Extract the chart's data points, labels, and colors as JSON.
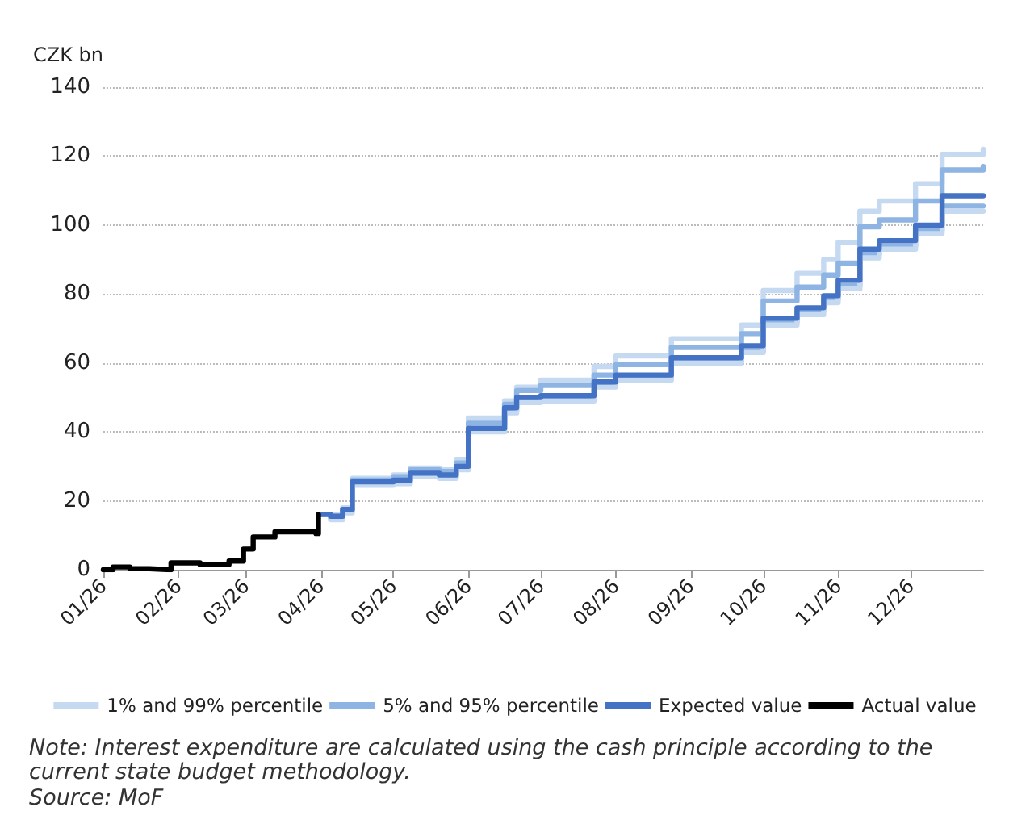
{
  "chart_data": {
    "type": "step",
    "ylabel": "CZK bn",
    "xlim": [
      "2026-01-01",
      "2026-12-31"
    ],
    "xticks": [
      {
        "value": "2026-01-01",
        "label": "01/26"
      },
      {
        "value": "2026-02-01",
        "label": "02/26"
      },
      {
        "value": "2026-03-01",
        "label": "03/26"
      },
      {
        "value": "2026-04-01",
        "label": "04/26"
      },
      {
        "value": "2026-05-01",
        "label": "05/26"
      },
      {
        "value": "2026-06-01",
        "label": "06/26"
      },
      {
        "value": "2026-07-01",
        "label": "07/26"
      },
      {
        "value": "2026-08-01",
        "label": "08/26"
      },
      {
        "value": "2026-09-01",
        "label": "09/26"
      },
      {
        "value": "2026-10-01",
        "label": "10/26"
      },
      {
        "value": "2026-11-01",
        "label": "11/26"
      },
      {
        "value": "2026-12-01",
        "label": "12/26"
      }
    ],
    "ylim": [
      0,
      140
    ],
    "yticks": [
      0,
      20,
      40,
      60,
      80,
      100,
      120,
      140
    ],
    "grid": "y",
    "legend": "bottom",
    "marker": "none",
    "line_style": "solid",
    "series": [
      {
        "name": "1% and 99% percentile",
        "color": "#c5d9f1",
        "x": [
          "2026-04-01",
          "2026-04-05",
          "2026-04-10",
          "2026-04-14",
          "2026-05-01",
          "2026-05-08",
          "2026-05-20",
          "2026-05-27",
          "2026-06-01",
          "2026-06-16",
          "2026-06-21",
          "2026-07-01",
          "2026-07-23",
          "2026-08-01",
          "2026-08-24",
          "2026-09-22",
          "2026-10-01",
          "2026-10-15",
          "2026-10-26",
          "2026-11-01",
          "2026-11-10",
          "2026-11-18",
          "2026-12-03",
          "2026-12-14",
          "2026-12-31"
        ],
        "values": [
          16,
          16,
          18,
          26.5,
          27.5,
          29.5,
          29,
          32,
          44,
          49,
          53,
          55,
          59,
          62,
          67,
          71,
          81,
          86,
          90,
          95,
          104,
          107,
          112,
          120.5,
          122
        ]
      },
      {
        "name": "5% and 95% percentile",
        "color": "#8db4e2",
        "x": [
          "2026-04-01",
          "2026-04-05",
          "2026-04-10",
          "2026-04-14",
          "2026-05-01",
          "2026-05-08",
          "2026-05-20",
          "2026-05-27",
          "2026-06-01",
          "2026-06-16",
          "2026-06-21",
          "2026-07-01",
          "2026-07-23",
          "2026-08-01",
          "2026-08-24",
          "2026-09-22",
          "2026-10-01",
          "2026-10-15",
          "2026-10-26",
          "2026-11-01",
          "2026-11-10",
          "2026-11-18",
          "2026-12-03",
          "2026-12-14",
          "2026-12-31"
        ],
        "values": [
          16,
          15.5,
          17.5,
          26,
          27,
          29,
          28.5,
          31,
          42.5,
          48,
          52,
          53.5,
          56.5,
          59.5,
          64.5,
          68.5,
          78,
          82,
          85.5,
          89,
          99.5,
          101.5,
          107,
          116,
          117
        ]
      },
      {
        "color": "#8db4e2",
        "x": [
          "2026-04-01",
          "2026-04-05",
          "2026-04-10",
          "2026-04-14",
          "2026-05-01",
          "2026-05-08",
          "2026-05-20",
          "2026-05-27",
          "2026-06-01",
          "2026-06-16",
          "2026-06-21",
          "2026-07-01",
          "2026-07-23",
          "2026-08-01",
          "2026-08-24",
          "2026-09-22",
          "2026-10-01",
          "2026-10-15",
          "2026-10-26",
          "2026-11-01",
          "2026-11-10",
          "2026-11-18",
          "2026-12-03",
          "2026-12-14",
          "2026-12-31"
        ],
        "values": [
          16,
          15,
          17,
          25,
          25.5,
          27.5,
          27,
          29.5,
          40.5,
          46,
          49,
          49.5,
          53.5,
          55.5,
          60.5,
          63.5,
          72,
          75,
          78.5,
          82.5,
          91.5,
          94,
          98.5,
          105.5,
          105.5
        ]
      },
      {
        "color": "#c5d9f1",
        "x": [
          "2026-04-01",
          "2026-04-05",
          "2026-04-10",
          "2026-04-14",
          "2026-05-01",
          "2026-05-08",
          "2026-05-20",
          "2026-05-27",
          "2026-06-01",
          "2026-06-16",
          "2026-06-21",
          "2026-07-01",
          "2026-07-23",
          "2026-08-01",
          "2026-08-24",
          "2026-09-22",
          "2026-10-01",
          "2026-10-15",
          "2026-10-26",
          "2026-11-01",
          "2026-11-10",
          "2026-11-18",
          "2026-12-03",
          "2026-12-14",
          "2026-12-31"
        ],
        "values": [
          16,
          14.5,
          16.5,
          24.5,
          25,
          27,
          26.5,
          29,
          40,
          45.5,
          48.5,
          49,
          53,
          55,
          60,
          63,
          71,
          74,
          77.5,
          81.5,
          90.5,
          93,
          97.5,
          104,
          104
        ]
      },
      {
        "name": "Expected value",
        "color": "#4472c4",
        "x": [
          "2026-04-01",
          "2026-04-05",
          "2026-04-10",
          "2026-04-14",
          "2026-05-01",
          "2026-05-08",
          "2026-05-20",
          "2026-05-27",
          "2026-06-01",
          "2026-06-16",
          "2026-06-21",
          "2026-07-01",
          "2026-07-23",
          "2026-08-01",
          "2026-08-24",
          "2026-09-22",
          "2026-10-01",
          "2026-10-15",
          "2026-10-26",
          "2026-11-01",
          "2026-11-10",
          "2026-11-18",
          "2026-12-03",
          "2026-12-14",
          "2026-12-31"
        ],
        "values": [
          16,
          15.5,
          17.5,
          25.5,
          26,
          28,
          27.5,
          30,
          41,
          47,
          50,
          50.5,
          54.5,
          56.5,
          61.5,
          65,
          73,
          76,
          79.5,
          84,
          93,
          95.5,
          100,
          108.5,
          108.5
        ]
      },
      {
        "name": "Actual value",
        "color": "#000000",
        "x": [
          "2026-01-01",
          "2026-01-05",
          "2026-01-12",
          "2026-01-20",
          "2026-01-29",
          "2026-02-10",
          "2026-02-22",
          "2026-02-28",
          "2026-03-04",
          "2026-03-13",
          "2026-03-30",
          "2026-03-31"
        ],
        "values": [
          0,
          0.8,
          0.3,
          0,
          2,
          1.5,
          2.5,
          6,
          9.5,
          11,
          10.5,
          16
        ]
      }
    ],
    "annotations": [
      "Note: Interest expenditure are calculated using the cash principle according to the current state budget methodology.",
      "Source: MoF"
    ]
  }
}
